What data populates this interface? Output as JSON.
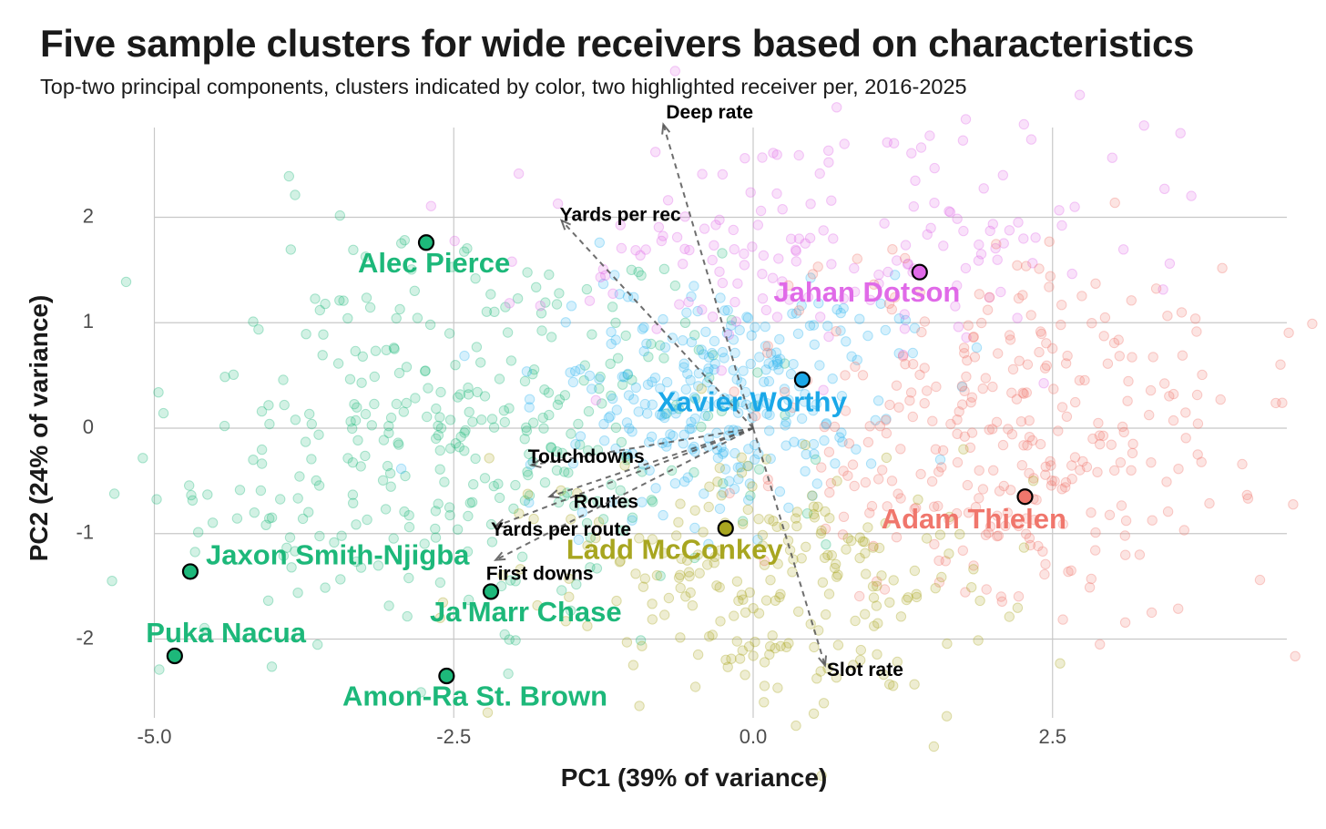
{
  "title": "Five sample clusters for wide receivers based on characteristics",
  "subtitle": "Top-two principal components, clusters indicated by color, two highlighted receiver per, 2016-2025",
  "chart_data": {
    "type": "scatter",
    "xlabel": "PC1 (39% of variance)",
    "ylabel": "PC2 (24% of variance)",
    "xlim": [
      -5.5,
      4.4
    ],
    "ylim": [
      -2.75,
      2.8
    ],
    "x_ticks": [
      -5.0,
      -2.5,
      0.0,
      2.5
    ],
    "x_tick_labels": [
      "-5.0",
      "-2.5",
      "0.0",
      "2.5"
    ],
    "y_ticks": [
      -2,
      -1,
      0,
      1,
      2
    ],
    "y_tick_labels": [
      "-2",
      "-1",
      "0",
      "1",
      "2"
    ],
    "grid": true,
    "clusters": [
      {
        "name": "green",
        "color": "#1db87a",
        "center": [
          -2.4,
          0.0
        ],
        "spread": [
          1.2,
          0.85
        ],
        "count": 360
      },
      {
        "name": "blue",
        "color": "#2bb5f0",
        "center": [
          -0.3,
          0.3
        ],
        "spread": [
          0.7,
          0.55
        ],
        "count": 280
      },
      {
        "name": "pink",
        "color": "#e06ae8",
        "center": [
          0.6,
          1.8
        ],
        "spread": [
          1.2,
          0.55
        ],
        "count": 170
      },
      {
        "name": "red",
        "color": "#f0766c",
        "center": [
          2.2,
          0.0
        ],
        "spread": [
          1.0,
          0.85
        ],
        "count": 320
      },
      {
        "name": "olive",
        "color": "#a8a620",
        "center": [
          0.1,
          -1.5
        ],
        "spread": [
          0.9,
          0.6
        ],
        "count": 230
      }
    ],
    "highlighted": [
      {
        "name": "Alec Pierce",
        "x": -2.73,
        "y": 1.76,
        "color": "#1db87a",
        "fill": "#1db87a"
      },
      {
        "name": "Jahan Dotson",
        "x": 1.39,
        "y": 1.48,
        "color": "#e06ae8",
        "fill": "#e06ae8"
      },
      {
        "name": "Xavier Worthy",
        "x": 0.41,
        "y": 0.46,
        "color": "#1ba8e8",
        "fill": "#1ba8e8"
      },
      {
        "name": "Adam Thielen",
        "x": 2.27,
        "y": -0.65,
        "color": "#f0766c",
        "fill": "#f0766c"
      },
      {
        "name": "Ladd McConkey",
        "x": -0.23,
        "y": -0.95,
        "color": "#a8a620",
        "fill": "#a8a620"
      },
      {
        "name": "Jaxon Smith-Njigba",
        "x": -4.7,
        "y": -1.36,
        "color": "#1db87a",
        "fill": "#1db87a"
      },
      {
        "name": "Ja'Marr Chase",
        "x": -2.19,
        "y": -1.55,
        "color": "#1db87a",
        "fill": "#1db87a"
      },
      {
        "name": "Puka Nacua",
        "x": -4.83,
        "y": -2.16,
        "color": "#1db87a",
        "fill": "#1db87a"
      },
      {
        "name": "Amon-Ra St. Brown",
        "x": -2.56,
        "y": -2.35,
        "color": "#1db87a",
        "fill": "#1db87a"
      }
    ],
    "loadings": [
      {
        "name": "Deep rate",
        "x": -0.75,
        "y": 2.88
      },
      {
        "name": "Yards per rec",
        "x": -1.6,
        "y": 1.97
      },
      {
        "name": "Touchdowns",
        "x": -1.85,
        "y": -0.35
      },
      {
        "name": "Routes",
        "x": -1.7,
        "y": -0.65
      },
      {
        "name": "Yards per route",
        "x": -2.15,
        "y": -0.93
      },
      {
        "name": "First downs",
        "x": -2.15,
        "y": -1.25
      },
      {
        "name": "Slot rate",
        "x": 0.6,
        "y": -2.25
      }
    ]
  }
}
